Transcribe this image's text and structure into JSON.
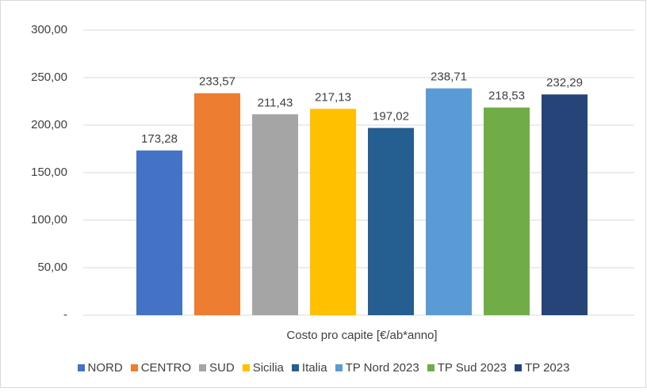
{
  "chart_data": {
    "type": "bar",
    "categories": [
      "Costo pro capite [€/ab*anno]"
    ],
    "series": [
      {
        "name": "NORD",
        "color": "#4472c4",
        "values": [
          173.28
        ],
        "value_labels": [
          "173,28"
        ]
      },
      {
        "name": "CENTRO",
        "color": "#ed7d31",
        "values": [
          233.57
        ],
        "value_labels": [
          "233,57"
        ]
      },
      {
        "name": "SUD",
        "color": "#a5a5a5",
        "values": [
          211.43
        ],
        "value_labels": [
          "211,43"
        ]
      },
      {
        "name": "Sicilia",
        "color": "#ffc000",
        "values": [
          217.13
        ],
        "value_labels": [
          "217,13"
        ]
      },
      {
        "name": "Italia",
        "color": "#255e91",
        "values": [
          197.02
        ],
        "value_labels": [
          "197,02"
        ]
      },
      {
        "name": "TP Nord 2023",
        "color": "#5b9bd5",
        "values": [
          238.71
        ],
        "value_labels": [
          "238,71"
        ]
      },
      {
        "name": "TP Sud 2023",
        "color": "#70ad47",
        "values": [
          218.53
        ],
        "value_labels": [
          "218,53"
        ]
      },
      {
        "name": "TP 2023",
        "color": "#264478",
        "values": [
          232.29
        ],
        "value_labels": [
          "232,29"
        ]
      }
    ],
    "ylim": [
      0,
      300
    ],
    "yticks": [
      {
        "value": 0,
        "label": "-"
      },
      {
        "value": 50,
        "label": "50,00"
      },
      {
        "value": 100,
        "label": "100,00"
      },
      {
        "value": 150,
        "label": "150,00"
      },
      {
        "value": 200,
        "label": "200,00"
      },
      {
        "value": 250,
        "label": "250,00"
      },
      {
        "value": 300,
        "label": "300,00"
      }
    ],
    "grid": true,
    "legend": "bottom"
  }
}
